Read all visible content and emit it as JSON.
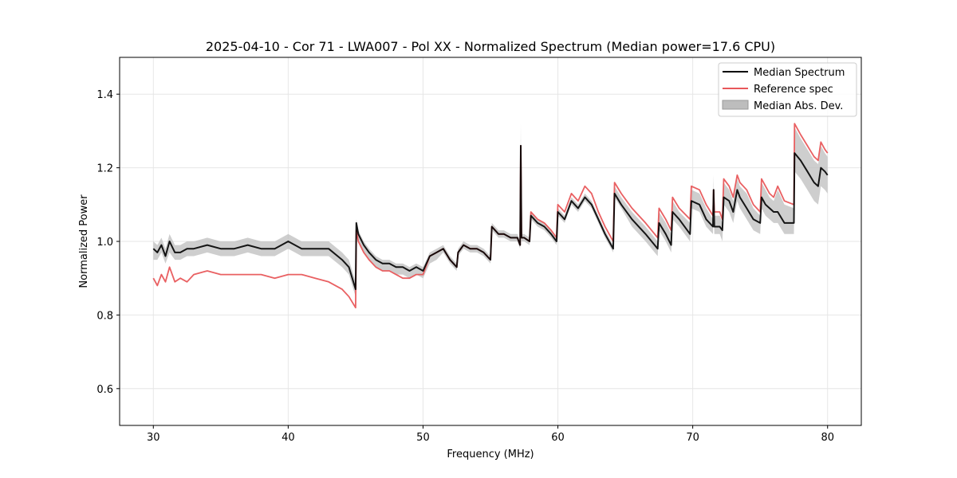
{
  "chart_data": {
    "type": "line",
    "title": "2025-04-10 - Cor 71 - LWA007 - Pol XX - Normalized Spectrum (Median power=17.6 CPU)",
    "xlabel": "Frequency (MHz)",
    "ylabel": "Normalized Power",
    "xlim": [
      27.5,
      82.5
    ],
    "ylim": [
      0.5,
      1.5
    ],
    "xticks": [
      30,
      40,
      50,
      60,
      70,
      80
    ],
    "yticks": [
      0.6,
      0.8,
      1.0,
      1.2,
      1.4
    ],
    "xtick_labels": [
      "30",
      "40",
      "50",
      "60",
      "70",
      "80"
    ],
    "ytick_labels": [
      "0.6",
      "0.8",
      "1.0",
      "1.2",
      "1.4"
    ],
    "grid": true,
    "legend_position": "top-right",
    "series": [
      {
        "name": "Median Spectrum",
        "color": "#000000",
        "kind": "line",
        "x": [
          30,
          30.3,
          30.6,
          30.9,
          31.2,
          31.6,
          32.0,
          32.5,
          33,
          34,
          35,
          36,
          37,
          38,
          39,
          40,
          41,
          42,
          43,
          44,
          44.5,
          45.0,
          45.05,
          45.2,
          45.6,
          46,
          46.5,
          47,
          47.5,
          48,
          48.5,
          49,
          49.5,
          50,
          50.5,
          51,
          51.5,
          52,
          52.5,
          52.6,
          53,
          53.5,
          54,
          54.5,
          55,
          55.1,
          55.6,
          56,
          56.5,
          57,
          57.2,
          57.25,
          57.3,
          57.5,
          57.9,
          58,
          58.5,
          59,
          59.5,
          59.9,
          60,
          60.5,
          61,
          61.5,
          62,
          62.5,
          63,
          63.5,
          64.1,
          64.2,
          64.7,
          65.5,
          66.5,
          67.4,
          67.5,
          68,
          68.4,
          68.5,
          69,
          69.8,
          69.9,
          70.5,
          71,
          71.5,
          71.55,
          71.6,
          72,
          72.2,
          72.3,
          72.7,
          73,
          73.3,
          73.5,
          74,
          74.5,
          75.0,
          75.1,
          75.4,
          75.7,
          76,
          76.3,
          76.8,
          77.5,
          77.55,
          78,
          78.5,
          79,
          79.3,
          79.5,
          79.8,
          80
        ],
        "values": [
          0.98,
          0.97,
          0.99,
          0.96,
          1.0,
          0.97,
          0.97,
          0.98,
          0.98,
          0.99,
          0.98,
          0.98,
          0.99,
          0.98,
          0.98,
          1.0,
          0.98,
          0.98,
          0.98,
          0.95,
          0.93,
          0.87,
          1.05,
          1.02,
          0.99,
          0.97,
          0.95,
          0.94,
          0.94,
          0.93,
          0.93,
          0.92,
          0.93,
          0.92,
          0.96,
          0.97,
          0.98,
          0.95,
          0.93,
          0.97,
          0.99,
          0.98,
          0.98,
          0.97,
          0.95,
          1.04,
          1.02,
          1.02,
          1.01,
          1.01,
          0.99,
          1.26,
          1.01,
          1.01,
          1.0,
          1.07,
          1.05,
          1.04,
          1.02,
          1.0,
          1.08,
          1.06,
          1.11,
          1.09,
          1.12,
          1.1,
          1.06,
          1.02,
          0.98,
          1.13,
          1.1,
          1.06,
          1.02,
          0.98,
          1.05,
          1.02,
          0.99,
          1.08,
          1.06,
          1.02,
          1.11,
          1.1,
          1.06,
          1.04,
          1.14,
          1.04,
          1.04,
          1.03,
          1.12,
          1.11,
          1.08,
          1.14,
          1.12,
          1.09,
          1.06,
          1.05,
          1.12,
          1.1,
          1.09,
          1.08,
          1.08,
          1.05,
          1.05,
          1.24,
          1.22,
          1.19,
          1.16,
          1.15,
          1.2,
          1.19,
          1.18
        ]
      },
      {
        "name": "Reference spec",
        "color": "#e8575a",
        "kind": "line",
        "x": [
          30,
          30.3,
          30.6,
          30.9,
          31.2,
          31.6,
          32.0,
          32.5,
          33,
          34,
          35,
          36,
          37,
          38,
          39,
          40,
          41,
          42,
          43,
          44,
          44.5,
          45.0,
          45.05,
          45.2,
          45.6,
          46,
          46.5,
          47,
          47.5,
          48,
          48.5,
          49,
          49.5,
          50,
          50.5,
          51,
          51.5,
          52,
          52.5,
          52.6,
          53,
          53.5,
          54,
          54.5,
          55,
          55.1,
          55.6,
          56,
          56.5,
          57,
          57.2,
          57.25,
          57.3,
          57.5,
          57.9,
          58,
          58.5,
          59,
          59.5,
          59.9,
          60,
          60.5,
          61,
          61.5,
          62,
          62.5,
          63,
          63.5,
          64.1,
          64.2,
          64.7,
          65.5,
          66.5,
          67.4,
          67.5,
          68,
          68.4,
          68.5,
          69,
          69.8,
          69.9,
          70.5,
          71,
          71.5,
          71.55,
          71.6,
          72,
          72.2,
          72.3,
          72.7,
          73,
          73.3,
          73.5,
          74,
          74.5,
          75.0,
          75.1,
          75.4,
          75.7,
          76,
          76.3,
          76.8,
          77.5,
          77.55,
          78,
          78.5,
          79,
          79.3,
          79.5,
          79.8,
          80
        ],
        "values": [
          0.9,
          0.88,
          0.91,
          0.89,
          0.93,
          0.89,
          0.9,
          0.89,
          0.91,
          0.92,
          0.91,
          0.91,
          0.91,
          0.91,
          0.9,
          0.91,
          0.91,
          0.9,
          0.89,
          0.87,
          0.85,
          0.82,
          1.03,
          1.0,
          0.97,
          0.95,
          0.93,
          0.92,
          0.92,
          0.91,
          0.9,
          0.9,
          0.91,
          0.91,
          0.96,
          0.97,
          0.98,
          0.95,
          0.93,
          0.97,
          0.99,
          0.98,
          0.98,
          0.97,
          0.95,
          1.04,
          1.02,
          1.02,
          1.01,
          1.01,
          0.99,
          1.26,
          1.01,
          1.01,
          1.0,
          1.08,
          1.06,
          1.05,
          1.03,
          1.01,
          1.1,
          1.08,
          1.13,
          1.11,
          1.15,
          1.13,
          1.08,
          1.04,
          1.0,
          1.16,
          1.13,
          1.09,
          1.05,
          1.01,
          1.09,
          1.06,
          1.03,
          1.12,
          1.09,
          1.06,
          1.15,
          1.14,
          1.1,
          1.07,
          1.14,
          1.08,
          1.08,
          1.06,
          1.17,
          1.15,
          1.12,
          1.18,
          1.16,
          1.14,
          1.1,
          1.08,
          1.17,
          1.15,
          1.13,
          1.12,
          1.15,
          1.11,
          1.1,
          1.32,
          1.29,
          1.26,
          1.23,
          1.22,
          1.27,
          1.25,
          1.24
        ]
      }
    ],
    "band": {
      "name": "Median Abs. Dev.",
      "color": "#bdbdbd",
      "lower": [
        0.95,
        0.95,
        0.97,
        0.94,
        0.97,
        0.95,
        0.95,
        0.96,
        0.96,
        0.97,
        0.96,
        0.96,
        0.97,
        0.96,
        0.96,
        0.98,
        0.96,
        0.96,
        0.96,
        0.93,
        0.91,
        0.85,
        1.03,
        1.0,
        0.97,
        0.95,
        0.93,
        0.92,
        0.92,
        0.91,
        0.91,
        0.9,
        0.91,
        0.9,
        0.94,
        0.95,
        0.97,
        0.94,
        0.92,
        0.96,
        0.98,
        0.97,
        0.97,
        0.96,
        0.94,
        1.03,
        1.01,
        1.01,
        1.0,
        1.0,
        0.98,
        1.25,
        1.0,
        1.0,
        0.99,
        1.06,
        1.04,
        1.03,
        1.01,
        0.99,
        1.07,
        1.05,
        1.1,
        1.08,
        1.11,
        1.09,
        1.05,
        1.01,
        0.97,
        1.12,
        1.09,
        1.04,
        1.0,
        0.96,
        1.03,
        1.0,
        0.97,
        1.06,
        1.04,
        1.0,
        1.09,
        1.08,
        1.04,
        1.02,
        1.12,
        1.02,
        1.02,
        1.0,
        1.1,
        1.08,
        1.05,
        1.11,
        1.09,
        1.06,
        1.03,
        1.02,
        1.09,
        1.07,
        1.06,
        1.05,
        1.05,
        1.02,
        1.02,
        1.19,
        1.17,
        1.14,
        1.11,
        1.1,
        1.15,
        1.14,
        1.13
      ],
      "upper": [
        1.0,
        0.99,
        1.01,
        0.98,
        1.02,
        0.99,
        0.99,
        1.0,
        1.0,
        1.01,
        1.0,
        1.0,
        1.01,
        1.0,
        1.0,
        1.02,
        1.0,
        1.0,
        1.0,
        0.97,
        0.95,
        0.89,
        1.06,
        1.03,
        1.0,
        0.98,
        0.96,
        0.95,
        0.95,
        0.94,
        0.94,
        0.93,
        0.94,
        0.93,
        0.97,
        0.98,
        0.99,
        0.96,
        0.94,
        0.98,
        1.0,
        0.99,
        0.99,
        0.98,
        0.96,
        1.05,
        1.03,
        1.03,
        1.02,
        1.02,
        1.0,
        1.32,
        1.02,
        1.02,
        1.01,
        1.08,
        1.06,
        1.05,
        1.03,
        1.01,
        1.09,
        1.07,
        1.12,
        1.1,
        1.13,
        1.11,
        1.07,
        1.03,
        0.99,
        1.15,
        1.12,
        1.08,
        1.04,
        1.0,
        1.08,
        1.05,
        1.02,
        1.11,
        1.08,
        1.05,
        1.14,
        1.13,
        1.09,
        1.06,
        1.18,
        1.07,
        1.07,
        1.05,
        1.16,
        1.14,
        1.11,
        1.17,
        1.15,
        1.13,
        1.09,
        1.07,
        1.16,
        1.14,
        1.12,
        1.11,
        1.14,
        1.1,
        1.09,
        1.31,
        1.28,
        1.25,
        1.22,
        1.21,
        1.26,
        1.24,
        1.23
      ]
    }
  }
}
